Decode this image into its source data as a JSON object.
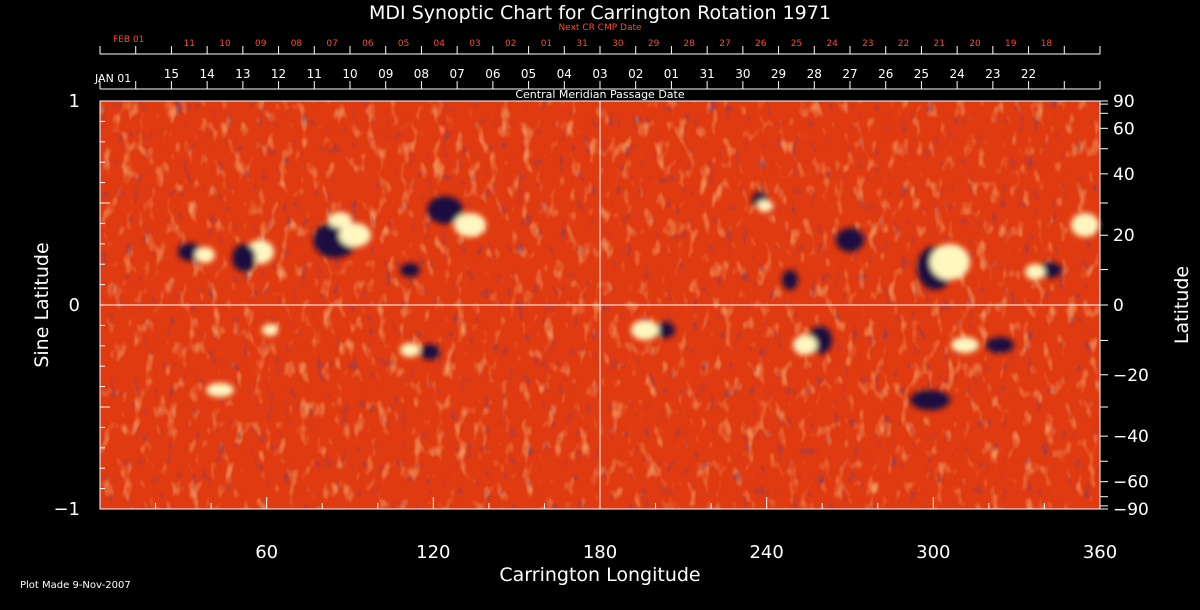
{
  "chart_data": {
    "type": "heatmap",
    "title": "MDI Synoptic Chart for Carrington Rotation 1971",
    "xlabel": "Carrington Longitude",
    "ylabel_left": "Sine Latitude",
    "ylabel_right": "Latitude",
    "x_range": [
      0,
      360
    ],
    "y_range": [
      -1,
      1
    ],
    "x_ticks": [
      60,
      120,
      180,
      240,
      300,
      360
    ],
    "y_ticks_left": [
      "1",
      "0",
      "−1"
    ],
    "y_ticks_right": [
      90,
      60,
      40,
      20,
      0,
      -20,
      -40,
      -60,
      -90
    ],
    "top_axis_label": "Central Meridian Passage Date",
    "top_axis_start": "JAN 01",
    "top_axis_dates": [
      "15",
      "14",
      "13",
      "12",
      "11",
      "10",
      "09",
      "08",
      "07",
      "06",
      "05",
      "04",
      "03",
      "02",
      "01",
      "31",
      "30",
      "29",
      "28",
      "27",
      "26",
      "25",
      "24",
      "23",
      "22"
    ],
    "next_axis_label": "Next CR CMP Date",
    "next_axis_start": "FEB 01",
    "next_axis_dates": [
      "11",
      "10",
      "09",
      "08",
      "07",
      "06",
      "05",
      "04",
      "03",
      "02",
      "01",
      "31",
      "30",
      "29",
      "28",
      "27",
      "26",
      "25",
      "24",
      "23",
      "22",
      "21",
      "20",
      "19",
      "18"
    ],
    "footnote": "Plot Made  9-Nov-2007",
    "colors": {
      "background": "#000000",
      "field": "#e03a10",
      "positive": "#fff6c0",
      "negative": "#1a1040",
      "next_axis": "#ff4a2a"
    }
  }
}
